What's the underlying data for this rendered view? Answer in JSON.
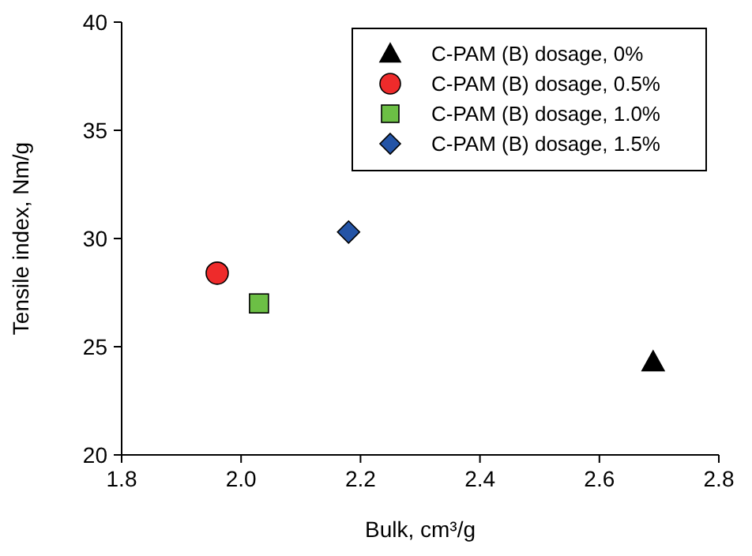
{
  "chart_data": {
    "type": "scatter",
    "xlabel": "Bulk, cm³/g",
    "ylabel": "Tensile index, Nm/g",
    "xlim": [
      1.8,
      2.8
    ],
    "xticks": [
      {
        "value": 1.8,
        "label": "1.8"
      },
      {
        "value": 2.0,
        "label": "2.0"
      },
      {
        "value": 2.2,
        "label": "2.2"
      },
      {
        "value": 2.4,
        "label": "2.4"
      },
      {
        "value": 2.6,
        "label": "2.6"
      },
      {
        "value": 2.8,
        "label": "2.8"
      }
    ],
    "ylim": [
      20,
      40
    ],
    "yticks": [
      20,
      25,
      30,
      35,
      40
    ],
    "grid": false,
    "legend": "top right",
    "series": [
      {
        "name": "C-PAM (B) dosage, 0%",
        "color": "#000000",
        "marker": "triangle",
        "x": [
          2.69
        ],
        "values": [
          24.3
        ]
      },
      {
        "name": "C-PAM (B) dosage, 0.5%",
        "color": "#ee2b2b",
        "marker": "circle",
        "x": [
          1.96
        ],
        "values": [
          28.4
        ]
      },
      {
        "name": "C-PAM (B) dosage, 1.0%",
        "color": "#6cbf45",
        "marker": "square",
        "x": [
          2.03
        ],
        "values": [
          27.0
        ]
      },
      {
        "name": "C-PAM (B) dosage, 1.5%",
        "color": "#2454a6",
        "marker": "diamond",
        "x": [
          2.18
        ],
        "values": [
          30.3
        ]
      }
    ]
  }
}
